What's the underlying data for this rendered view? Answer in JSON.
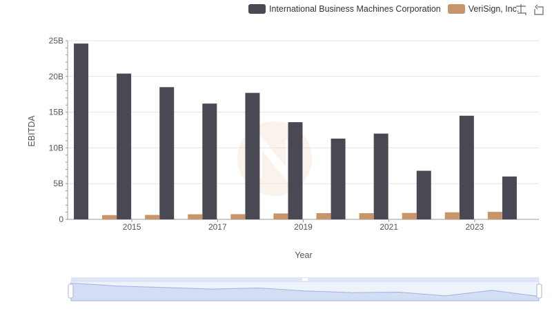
{
  "legend": {
    "items": [
      {
        "label": "International Business Machines Corporation",
        "color": "#4a4953"
      },
      {
        "label": "VeriSign, Inc.",
        "color": "#c8956a"
      }
    ]
  },
  "toolbar": {
    "zoom_icon": "zoom-icon",
    "restore_icon": "restore-icon"
  },
  "chart_data": {
    "type": "bar",
    "x": [
      2014,
      2015,
      2016,
      2017,
      2018,
      2019,
      2020,
      2021,
      2022,
      2023,
      2024
    ],
    "xticks": [
      "2015",
      "2017",
      "2019",
      "2021",
      "2023"
    ],
    "xlabel": "Year",
    "ylabel": "EBITDA",
    "yticks": [
      "0",
      "5B",
      "10B",
      "15B",
      "20B",
      "25B"
    ],
    "ylim": [
      0,
      25000000000
    ],
    "grid": true,
    "legend_position": "top-right",
    "series": [
      {
        "name": "International Business Machines Corporation",
        "color": "#4a4953",
        "values": [
          24600000000,
          20400000000,
          18500000000,
          16200000000,
          17700000000,
          13600000000,
          11300000000,
          12000000000,
          6800000000,
          14500000000,
          6000000000
        ]
      },
      {
        "name": "VeriSign, Inc.",
        "color": "#c8956a",
        "values": [
          600000000,
          620000000,
          710000000,
          730000000,
          830000000,
          870000000,
          860000000,
          900000000,
          990000000,
          1050000000,
          null
        ]
      }
    ]
  }
}
